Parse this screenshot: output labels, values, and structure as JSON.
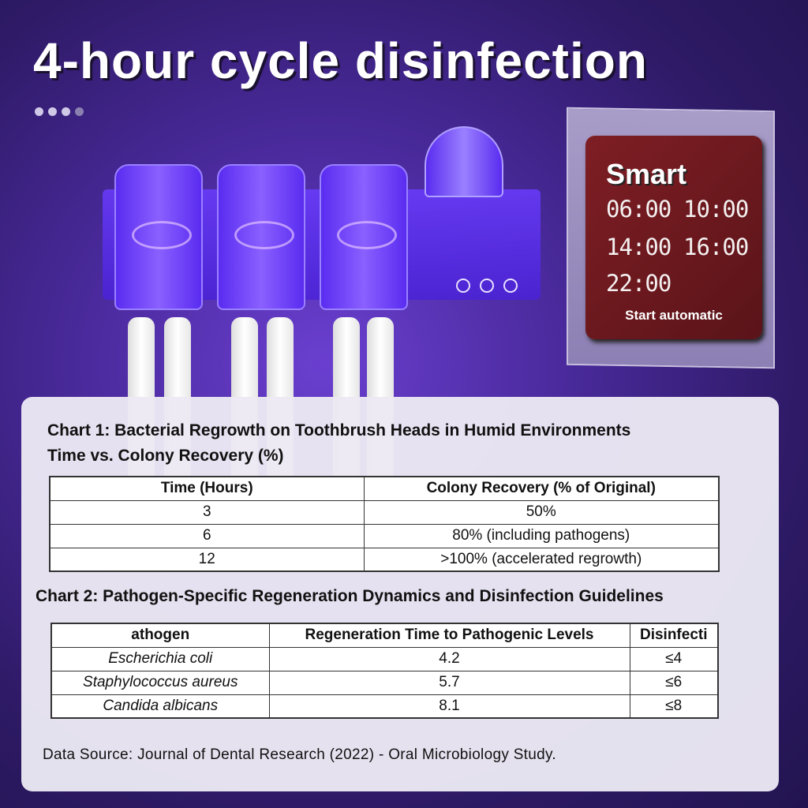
{
  "title": "4-hour cycle disinfection",
  "display": {
    "label": "Smart",
    "times": [
      "06:00",
      "10:00",
      "14:00",
      "16:00",
      "22:00"
    ],
    "footer": "Start automatic",
    "background": "#6e1a20"
  },
  "chart1": {
    "title": "Chart 1: Bacterial Regrowth on Toothbrush Heads in Humid Environments",
    "subtitle": "Time vs. Colony Recovery (%)",
    "headers": [
      "Time (Hours)",
      "Colony Recovery (% of Original)"
    ],
    "rows": [
      [
        "3",
        "50%"
      ],
      [
        "6",
        "80% (including pathogens)"
      ],
      [
        "12",
        ">100% (accelerated regrowth)"
      ]
    ]
  },
  "chart2": {
    "title": "Chart 2: Pathogen-Specific Regeneration Dynamics and Disinfection Guidelines",
    "headers": [
      "athogen",
      "Regeneration Time to Pathogenic Levels",
      "Disinfecti"
    ],
    "rows": [
      [
        "Escherichia coli",
        "4.2",
        "≤4"
      ],
      [
        "Staphylococcus aureus",
        "5.7",
        "≤6"
      ],
      [
        "Candida albicans",
        "8.1",
        "≤8"
      ]
    ]
  },
  "source": "Data Source: Journal of Dental Research (2022) - Oral Microbiology Study."
}
